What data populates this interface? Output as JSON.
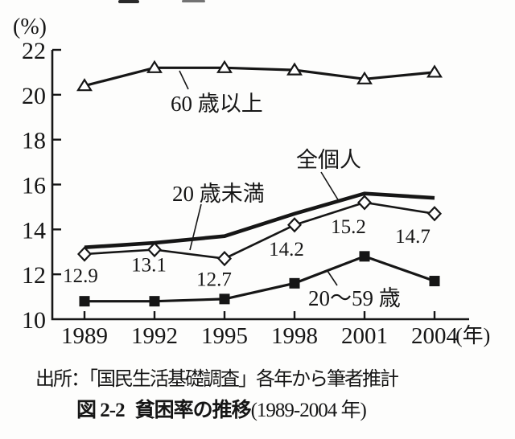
{
  "figure": {
    "colors": {
      "ink": "#161616",
      "background": "#fdfdfc"
    },
    "source": "出所：「国民生活基礎調査」各年から筆者推計",
    "caption_prefix": "図 2-2",
    "caption_title": "貧困率の推移",
    "caption_range": "(1989-2004 年)"
  },
  "annotations": [
    {
      "series": 0,
      "text": "60 歳以上"
    },
    {
      "series": 1,
      "text": "全個人"
    },
    {
      "series": 2,
      "text": "20 歳未満"
    },
    {
      "series": 3,
      "text": "20〜59 歳"
    }
  ],
  "chart_data": {
    "type": "line",
    "title": "図 2-2 貧困率の推移(1989-2004 年)",
    "xlabel": "(年)",
    "ylabel": "(%)",
    "x": [
      1989,
      1992,
      1995,
      1998,
      2001,
      2004
    ],
    "ylim": [
      10,
      22
    ],
    "y_ticks": [
      22,
      20,
      18,
      16,
      14,
      12,
      10
    ],
    "grid": false,
    "legend": "direct-line-labels",
    "series": [
      {
        "name": "60歳以上",
        "marker": "triangle-open",
        "values": [
          20.4,
          21.2,
          21.2,
          21.1,
          20.7,
          21.0
        ]
      },
      {
        "name": "全個人",
        "marker": "none",
        "values": [
          13.2,
          13.4,
          13.7,
          14.7,
          15.6,
          15.4
        ]
      },
      {
        "name": "20歳未満",
        "marker": "diamond-open",
        "values": [
          12.9,
          13.1,
          12.7,
          14.2,
          15.2,
          14.7
        ],
        "point_labels": [
          "12.9",
          "13.1",
          "12.7",
          "14.2",
          "15.2",
          "14.7"
        ]
      },
      {
        "name": "20〜59歳",
        "marker": "square-filled",
        "values": [
          10.8,
          10.8,
          10.9,
          11.6,
          12.8,
          11.7
        ]
      }
    ]
  }
}
